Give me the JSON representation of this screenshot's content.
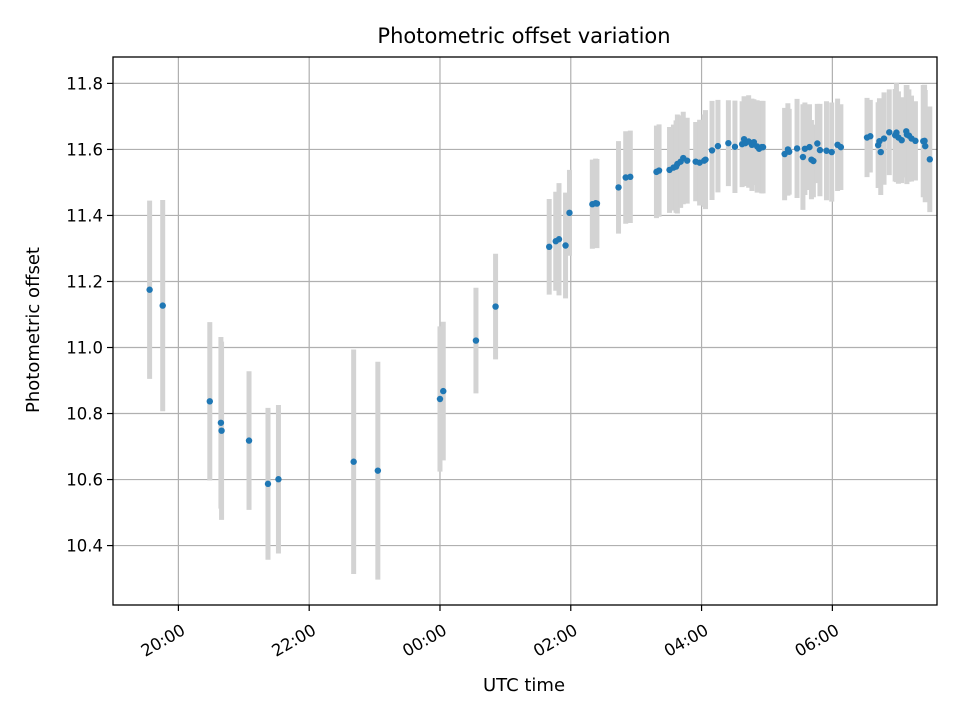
{
  "chart_data": {
    "type": "scatter",
    "title": "Photometric offset variation",
    "xlabel": "UTC time",
    "ylabel": "Photometric offset",
    "x_unit": "hours since 19:00 UTC",
    "xlim": [
      0.0,
      12.6
    ],
    "ylim": [
      10.22,
      11.88
    ],
    "x_ticks": [
      {
        "value": 1.0,
        "label": "20:00"
      },
      {
        "value": 3.0,
        "label": "22:00"
      },
      {
        "value": 5.0,
        "label": "00:00"
      },
      {
        "value": 7.0,
        "label": "02:00"
      },
      {
        "value": 9.0,
        "label": "04:00"
      },
      {
        "value": 11.0,
        "label": "06:00"
      }
    ],
    "y_ticks": [
      10.4,
      10.6,
      10.8,
      11.0,
      11.2,
      11.4,
      11.6,
      11.8
    ],
    "y_tick_labels": [
      "10.4",
      "10.6",
      "10.8",
      "11.0",
      "11.2",
      "11.4",
      "11.6",
      "11.8"
    ],
    "grid": true,
    "series": [
      {
        "marker_color": "#1f77b4",
        "errorbar_color": "#d3d3d3",
        "x": [
          0.56,
          0.76,
          1.48,
          1.65,
          1.66,
          2.08,
          2.37,
          2.53,
          3.68,
          4.05,
          5.0,
          5.05,
          5.55,
          5.85,
          6.67,
          6.77,
          6.82,
          6.92,
          6.98,
          7.33,
          7.38,
          7.4,
          7.73,
          7.84,
          7.91,
          8.31,
          8.35,
          8.51,
          8.57,
          8.61,
          8.63,
          8.68,
          8.72,
          8.78,
          8.91,
          8.97,
          9.04,
          9.06,
          9.16,
          9.25,
          9.41,
          9.51,
          9.62,
          9.65,
          9.67,
          9.72,
          9.77,
          9.8,
          9.85,
          9.88,
          9.92,
          9.94,
          10.27,
          10.32,
          10.34,
          10.46,
          10.55,
          10.58,
          10.65,
          10.68,
          10.71,
          10.77,
          10.81,
          10.91,
          10.99,
          11.08,
          11.13,
          11.53,
          11.58,
          11.7,
          11.72,
          11.74,
          11.79,
          11.87,
          11.96,
          11.98,
          12.01,
          12.06,
          12.13,
          12.14,
          12.17,
          12.21,
          12.27,
          12.39,
          12.42,
          12.41,
          12.49
        ],
        "y": [
          11.175,
          11.127,
          10.837,
          10.772,
          10.748,
          10.718,
          10.587,
          10.601,
          10.654,
          10.627,
          10.844,
          10.868,
          11.021,
          11.124,
          11.305,
          11.322,
          11.328,
          11.309,
          11.408,
          11.434,
          11.437,
          11.436,
          11.485,
          11.515,
          11.517,
          11.532,
          11.536,
          11.538,
          11.545,
          11.548,
          11.556,
          11.563,
          11.574,
          11.566,
          11.563,
          11.56,
          11.566,
          11.569,
          11.597,
          11.61,
          11.619,
          11.608,
          11.616,
          11.631,
          11.619,
          11.624,
          11.614,
          11.622,
          11.609,
          11.602,
          11.607,
          11.607,
          11.586,
          11.6,
          11.593,
          11.603,
          11.577,
          11.602,
          11.607,
          11.569,
          11.565,
          11.618,
          11.598,
          11.596,
          11.592,
          11.614,
          11.607,
          11.636,
          11.64,
          11.613,
          11.625,
          11.592,
          11.633,
          11.652,
          11.643,
          11.651,
          11.636,
          11.628,
          11.655,
          11.645,
          11.642,
          11.633,
          11.626,
          11.625,
          11.61,
          11.626,
          11.57
        ],
        "err": [
          0.27,
          0.32,
          0.24,
          0.26,
          0.27,
          0.21,
          0.23,
          0.225,
          0.34,
          0.33,
          0.22,
          0.21,
          0.16,
          0.16,
          0.145,
          0.15,
          0.17,
          0.16,
          0.13,
          0.135,
          0.135,
          0.135,
          0.14,
          0.14,
          0.14,
          0.14,
          0.14,
          0.13,
          0.13,
          0.14,
          0.15,
          0.14,
          0.14,
          0.13,
          0.12,
          0.13,
          0.14,
          0.15,
          0.15,
          0.14,
          0.13,
          0.14,
          0.13,
          0.13,
          0.13,
          0.14,
          0.14,
          0.13,
          0.14,
          0.13,
          0.14,
          0.14,
          0.14,
          0.14,
          0.13,
          0.15,
          0.16,
          0.14,
          0.13,
          0.12,
          0.11,
          0.12,
          0.14,
          0.15,
          0.15,
          0.14,
          0.13,
          0.12,
          0.11,
          0.13,
          0.13,
          0.13,
          0.14,
          0.13,
          0.14,
          0.15,
          0.14,
          0.13,
          0.14,
          0.15,
          0.14,
          0.13,
          0.12,
          0.17,
          0.17,
          0.17,
          0.16
        ]
      }
    ]
  }
}
